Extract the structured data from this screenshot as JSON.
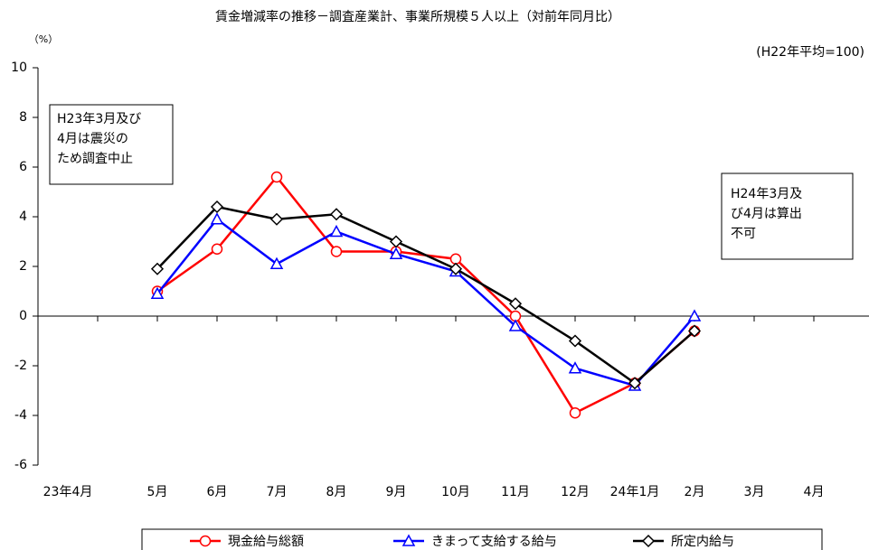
{
  "chart_data": {
    "type": "line",
    "title": "賃金増減率の推移－調査産業計、事業所規模５人以上（対前年同月比）",
    "y_label": "（%）",
    "subtitle": "(H22年平均=100)",
    "categories": [
      "23年4月",
      "5月",
      "6月",
      "7月",
      "8月",
      "9月",
      "10月",
      "11月",
      "12月",
      "24年1月",
      "2月",
      "3月",
      "4月"
    ],
    "series": [
      {
        "name": "現金給与総額",
        "color": "#ff0000",
        "marker": "circle",
        "values": [
          null,
          1.0,
          2.7,
          5.6,
          2.6,
          2.6,
          2.3,
          0.0,
          -3.9,
          -2.7,
          -0.6,
          null,
          null
        ]
      },
      {
        "name": "きまって支給する給与",
        "color": "#0000ff",
        "marker": "triangle",
        "values": [
          null,
          0.9,
          3.9,
          2.1,
          3.4,
          2.5,
          1.8,
          -0.4,
          -2.1,
          -2.8,
          0.0,
          null,
          null
        ]
      },
      {
        "name": "所定内給与",
        "color": "#000000",
        "marker": "diamond",
        "values": [
          null,
          1.9,
          4.4,
          3.9,
          4.1,
          3.0,
          1.9,
          0.5,
          -1.0,
          -2.7,
          -0.6,
          null,
          null
        ]
      }
    ],
    "ylim": [
      -6,
      10
    ],
    "yticks": [
      -6,
      -4,
      -2,
      0,
      2,
      4,
      6,
      8,
      10
    ],
    "grid": false,
    "annotations": [
      [
        "H23年3月及び",
        "4月は震災の",
        "ため調査中止"
      ],
      [
        "H24年3月及",
        "び4月は算出",
        "不可"
      ]
    ]
  }
}
